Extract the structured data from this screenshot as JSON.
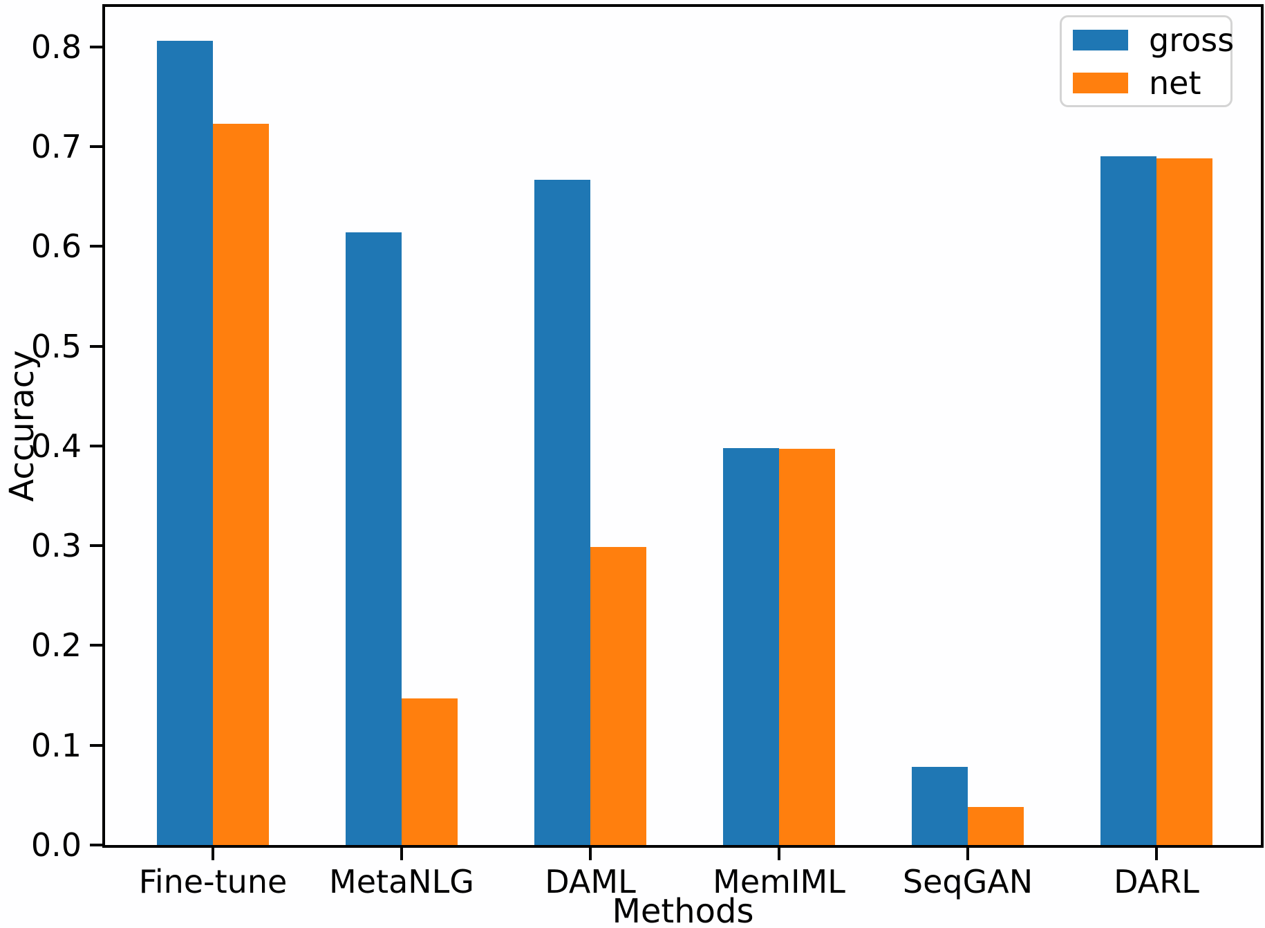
{
  "figure": {
    "background": "#fefeff"
  },
  "chart_data": {
    "type": "bar",
    "title": "",
    "xlabel": "Methods",
    "ylabel": "Accuracy",
    "categories": [
      "Fine-tune",
      "MetaNLG",
      "DAML",
      "MemIML",
      "SeqGAN",
      "DARL"
    ],
    "series": [
      {
        "name": "gross",
        "color": "#1f77b4",
        "values": [
          0.806,
          0.614,
          0.667,
          0.398,
          0.078,
          0.69
        ]
      },
      {
        "name": "net",
        "color": "#ff7f0e",
        "values": [
          0.723,
          0.147,
          0.299,
          0.397,
          0.038,
          0.688
        ]
      }
    ],
    "ylim": [
      0,
      0.84
    ],
    "yticks": [
      0,
      0.1,
      0.2,
      0.3,
      0.4,
      0.5,
      0.6,
      0.7,
      0.8
    ],
    "ytick_decimals": 1,
    "legend_position": "upper right",
    "legend_labels": [
      "gross",
      "net"
    ],
    "grid": false,
    "spine_color": "#000000"
  }
}
